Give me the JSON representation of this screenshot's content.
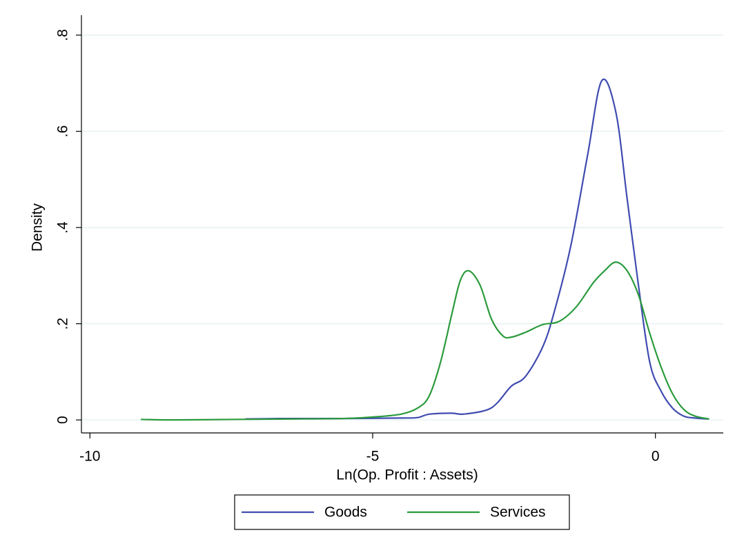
{
  "chart_data": {
    "type": "line",
    "xlabel": "Ln(Op. Profit : Assets)",
    "ylabel": "Density",
    "xlim": [
      -10.15,
      1.2
    ],
    "ylim": [
      -0.027,
      0.83
    ],
    "xticks": [
      -10,
      -5,
      0
    ],
    "yticks": [
      0,
      {
        "value": 0.2,
        "label": ".2"
      },
      {
        "value": 0.4,
        "label": ".4"
      },
      {
        "value": 0.6,
        "label": ".6"
      },
      {
        "value": 0.8,
        "label": ".8"
      }
    ],
    "grid": true,
    "legend": "bottom",
    "series": [
      {
        "name": "Goods",
        "color": "#3f4bb0",
        "x": [
          -7.25,
          -6.5,
          -5.5,
          -4.5,
          -4.2,
          -4.0,
          -3.6,
          -3.4,
          -3.0,
          -2.8,
          -2.55,
          -2.3,
          -2.0,
          -1.8,
          -1.5,
          -1.2,
          -0.95,
          -0.7,
          -0.5,
          -0.3,
          -0.1,
          0.1,
          0.3,
          0.5,
          0.7,
          0.95
        ],
        "values": [
          0.002,
          0.003,
          0.003,
          0.004,
          0.005,
          0.012,
          0.014,
          0.012,
          0.02,
          0.035,
          0.07,
          0.09,
          0.15,
          0.22,
          0.36,
          0.55,
          0.705,
          0.64,
          0.46,
          0.28,
          0.12,
          0.06,
          0.025,
          0.008,
          0.004,
          0.002
        ]
      },
      {
        "name": "Services",
        "color": "#2a9a3c",
        "x": [
          -9.1,
          -8.5,
          -7.5,
          -6.5,
          -5.5,
          -5.0,
          -4.5,
          -4.2,
          -4.0,
          -3.8,
          -3.6,
          -3.45,
          -3.3,
          -3.1,
          -2.9,
          -2.7,
          -2.55,
          -2.3,
          -2.0,
          -1.7,
          -1.4,
          -1.1,
          -0.9,
          -0.7,
          -0.5,
          -0.3,
          -0.1,
          0.1,
          0.3,
          0.5,
          0.7,
          0.95
        ],
        "values": [
          0.001,
          0.0,
          0.001,
          0.002,
          0.003,
          0.006,
          0.012,
          0.025,
          0.05,
          0.12,
          0.22,
          0.29,
          0.31,
          0.28,
          0.21,
          0.175,
          0.172,
          0.182,
          0.198,
          0.205,
          0.235,
          0.285,
          0.31,
          0.328,
          0.31,
          0.26,
          0.18,
          0.11,
          0.055,
          0.022,
          0.008,
          0.002
        ]
      }
    ]
  }
}
